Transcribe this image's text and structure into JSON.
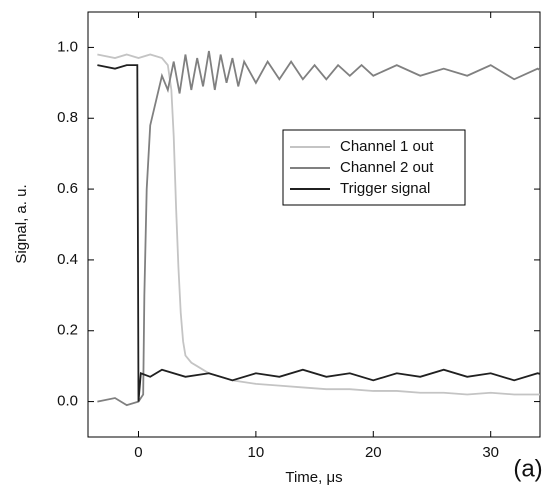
{
  "chart_data": {
    "type": "line",
    "x_label": "Time, μs",
    "y_label": "Signal, a. u.",
    "annotation": "(a)",
    "xlim": [
      -4.3,
      34.2
    ],
    "xticks": [
      0,
      10,
      20,
      30
    ],
    "ylim": [
      -0.1,
      1.1
    ],
    "yticks": [
      {
        "value": 0,
        "label": "0.0"
      },
      0.2,
      0.4,
      0.6,
      0.8,
      {
        "value": 1,
        "label": "1.0"
      }
    ],
    "series": [
      {
        "name": "Channel 1 out",
        "color": "#c4c4c4",
        "x": [
          -3.5,
          -2,
          -1,
          0,
          1,
          2,
          2.5,
          2.8,
          3,
          3.2,
          3.4,
          3.6,
          3.8,
          4,
          4.5,
          5,
          6,
          7,
          8,
          9,
          10,
          12,
          14,
          16,
          18,
          20,
          22,
          24,
          26,
          28,
          30,
          32,
          34,
          35
        ],
        "values": [
          0.98,
          0.97,
          0.98,
          0.97,
          0.98,
          0.97,
          0.95,
          0.88,
          0.75,
          0.55,
          0.38,
          0.25,
          0.17,
          0.13,
          0.11,
          0.1,
          0.08,
          0.07,
          0.06,
          0.055,
          0.05,
          0.045,
          0.04,
          0.035,
          0.035,
          0.03,
          0.03,
          0.025,
          0.025,
          0.02,
          0.025,
          0.02,
          0.02,
          0.02
        ]
      },
      {
        "name": "Channel 2 out",
        "color": "#808080",
        "x": [
          -3.5,
          -2,
          -1,
          0,
          0.4,
          0.5,
          0.7,
          1,
          1.5,
          2,
          2.5,
          3,
          3.5,
          4,
          4.5,
          5,
          5.5,
          6,
          6.5,
          7,
          7.5,
          8,
          8.5,
          9,
          10,
          11,
          12,
          13,
          14,
          15,
          16,
          17,
          18,
          19,
          20,
          22,
          24,
          26,
          28,
          30,
          32,
          34,
          35
        ],
        "values": [
          0.0,
          0.01,
          -0.01,
          0.0,
          0.02,
          0.3,
          0.6,
          0.78,
          0.85,
          0.92,
          0.88,
          0.96,
          0.87,
          0.98,
          0.88,
          0.97,
          0.89,
          0.99,
          0.88,
          0.98,
          0.9,
          0.97,
          0.89,
          0.96,
          0.9,
          0.96,
          0.91,
          0.96,
          0.91,
          0.95,
          0.91,
          0.95,
          0.92,
          0.95,
          0.92,
          0.95,
          0.92,
          0.94,
          0.92,
          0.95,
          0.91,
          0.94,
          0.92
        ]
      },
      {
        "name": "Trigger signal",
        "color": "#202020",
        "x": [
          -3.5,
          -2,
          -1,
          -0.1,
          0,
          0.2,
          1,
          2,
          4,
          6,
          8,
          10,
          12,
          14,
          16,
          18,
          20,
          22,
          24,
          26,
          28,
          30,
          32,
          34,
          35
        ],
        "values": [
          0.95,
          0.94,
          0.95,
          0.95,
          0.0,
          0.08,
          0.07,
          0.09,
          0.07,
          0.08,
          0.06,
          0.08,
          0.07,
          0.09,
          0.07,
          0.08,
          0.06,
          0.08,
          0.07,
          0.09,
          0.07,
          0.08,
          0.06,
          0.08,
          0.07
        ]
      }
    ]
  }
}
